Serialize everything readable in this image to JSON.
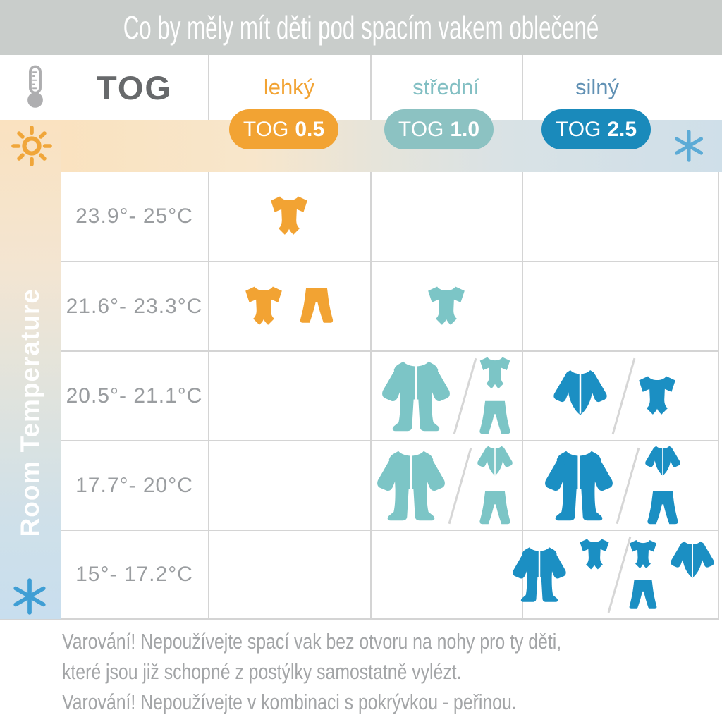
{
  "title": "Co by měly mít děti pod spacím vakem oblečené",
  "colors": {
    "title_bar": "#c9cdcb",
    "orange": "#f2a333",
    "teal_badge": "#8cc2c2",
    "teal_icon": "#7cc5c6",
    "teal_label": "#82bfc3",
    "blue_badge": "#1a8abb",
    "blue_icon": "#1b8fc3",
    "silny_label": "#6191b4",
    "sun": "#f0a63a",
    "snowflake_top": "#5cabd6",
    "snowflake_bottom": "#3f9ed4",
    "thermometer": "#aeaeb0",
    "tog_text": "#67696b",
    "temp_text": "#9a9da0",
    "warning_text": "#a3a5a7",
    "grid_line": "#d4d4d4"
  },
  "header": {
    "tog_label": "TOG",
    "columns": [
      {
        "id": "lehky",
        "label": "lehký",
        "badge_prefix": "TOG",
        "badge_value": "0.5"
      },
      {
        "id": "stredni",
        "label": "střední",
        "badge_prefix": "TOG",
        "badge_value": "1.0"
      },
      {
        "id": "silny",
        "label": "silný",
        "badge_prefix": "TOG",
        "badge_value": "2.5"
      }
    ]
  },
  "side_label": "Room Temperature",
  "icon_legend": {
    "bodysuit": "short-sleeve-bodysuit-icon",
    "pants": "pants-icon",
    "sleepsuit": "footed-sleepsuit-icon",
    "jacket": "long-sleeve-top-icon",
    "sun": "sun-icon",
    "snowflake": "snowflake-icon",
    "thermometer": "thermometer-icon"
  },
  "rows": [
    {
      "temp": "23.9°- 25°C",
      "cells": {
        "lehky": [
          [
            [
              "bodysuit"
            ]
          ]
        ],
        "stredni": [],
        "silny": []
      }
    },
    {
      "temp": "21.6°- 23.3°C",
      "cells": {
        "lehky": [
          [
            [
              "bodysuit"
            ],
            [
              "pants"
            ]
          ]
        ],
        "stredni": [
          [
            [
              "bodysuit"
            ]
          ]
        ],
        "silny": []
      }
    },
    {
      "temp": "20.5°- 21.1°C",
      "cells": {
        "lehky": [],
        "stredni": [
          [
            [
              "sleepsuit"
            ]
          ],
          [
            [
              "bodysuit",
              "pants"
            ]
          ]
        ],
        "silny": [
          [
            [
              "jacket"
            ]
          ],
          [
            [
              "bodysuit"
            ]
          ]
        ]
      }
    },
    {
      "temp": "17.7°- 20°C",
      "cells": {
        "lehky": [],
        "stredni": [
          [
            [
              "sleepsuit"
            ]
          ],
          [
            [
              "jacket",
              "pants"
            ]
          ]
        ],
        "silny": [
          [
            [
              "sleepsuit"
            ]
          ],
          [
            [
              "jacket",
              "pants"
            ]
          ]
        ]
      }
    },
    {
      "temp": "15°- 17.2°C",
      "cells": {
        "lehky": [],
        "stredni": [],
        "silny": [
          [
            [
              "sleepsuit"
            ],
            [
              "bodysuit"
            ]
          ],
          [
            [
              "bodysuit",
              "pants"
            ],
            [
              "jacket"
            ]
          ]
        ]
      }
    }
  ],
  "warnings": [
    "Varování! Nepoužívejte spací vak bez otvoru na nohy pro ty děti,",
    "které jsou již schopné z postýlky samostatně vylézt.",
    "Varování! Nepoužívejte v kombinaci s pokrývkou - peřinou."
  ]
}
